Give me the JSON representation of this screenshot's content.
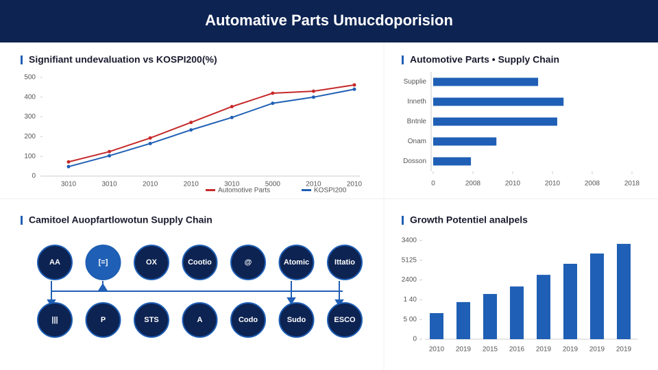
{
  "header": {
    "title": "Automative Parts Umucdoporision"
  },
  "supply_chain": {
    "title": "Camitoel Auopfartlowotun Supply Chain",
    "top": [
      "AA",
      "[=]",
      "OX",
      "Cootio",
      "@",
      "Atomic",
      "Ittatio"
    ],
    "bottom": [
      "|||",
      "P",
      "STS",
      "A",
      "Codo",
      "Sudo",
      "ESCO"
    ]
  },
  "chart_data": [
    {
      "type": "line",
      "title": "Signifiant undevaluation vs KOSPI200(%)",
      "categories": [
        "3010",
        "3010",
        "2010",
        "2010",
        "3010",
        "5000",
        "2010",
        "2010"
      ],
      "series": [
        {
          "name": "Automotive Parts",
          "color": "#c62828",
          "values": [
            72,
            124,
            193,
            272,
            352,
            420,
            430,
            462
          ]
        },
        {
          "name": "KOSPI200",
          "color": "#1f5fb5",
          "values": [
            48,
            103,
            165,
            234,
            297,
            369,
            400,
            440
          ]
        }
      ],
      "ylim": [
        0,
        500
      ],
      "yticks": [
        0,
        100,
        200,
        300,
        400,
        500
      ]
    },
    {
      "type": "hbar",
      "title": "Automotive Parts • Supply Chain",
      "categories": [
        "Supplie",
        "Inneth",
        "Bntnle",
        "Onam",
        "Dosson"
      ],
      "values": [
        264,
        328,
        312,
        159,
        95
      ],
      "color": "#1f5fb5",
      "xlim": [
        0,
        500
      ],
      "xticks": [
        0,
        {
          "value": 100,
          "label": "2008"
        },
        {
          "value": 200,
          "label": "2010"
        },
        {
          "value": 300,
          "label": "2010"
        },
        {
          "value": 400,
          "label": "2008"
        },
        {
          "value": 500,
          "label": "2018"
        }
      ]
    },
    {
      "type": "bar",
      "title": "Growth Potentiel analpels",
      "categories": [
        "2010",
        "2019",
        "2015",
        "2016",
        "2019",
        "2019",
        "2019",
        "2019"
      ],
      "values": [
        132,
        188,
        229,
        267,
        326,
        382,
        434,
        483
      ],
      "color": "#1f5fb5",
      "ylim": [
        0,
        500
      ],
      "yticks": [
        0,
        {
          "value": 100,
          "label": "5 00"
        },
        {
          "value": 200,
          "label": "1 40"
        },
        {
          "value": 300,
          "label": "2400"
        },
        {
          "value": 400,
          "label": "5125"
        },
        {
          "value": 500,
          "label": "3400"
        }
      ]
    }
  ]
}
